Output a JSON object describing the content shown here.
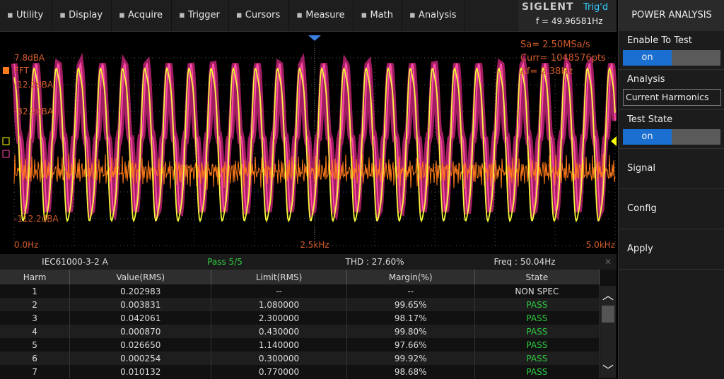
{
  "menu": {
    "items": [
      "Utility",
      "Display",
      "Acquire",
      "Trigger",
      "Cursors",
      "Measure",
      "Math",
      "Analysis"
    ]
  },
  "status": {
    "brand": "SIGLENT",
    "trigger": "Trig'd",
    "frequency": "f = 49.96581Hz"
  },
  "scope": {
    "y_labels": [
      "7.8dBA",
      "FFT",
      "-12.2dBA",
      "-32.2dBA",
      "-112.2dBA"
    ],
    "info": [
      "Sa=  2.50MSa/s",
      "Curr= 1048576pts",
      "Δf=  2.38Hz"
    ],
    "x_labels": [
      "0.0Hz",
      "2.5kHz",
      "5.0kHz"
    ]
  },
  "summary": {
    "standard": "IEC61000-3-2 A",
    "result": "Pass 5/5",
    "thd": "THD : 27.60%",
    "freq": "Freq : 50.04Hz"
  },
  "table": {
    "columns": [
      "Harm",
      "Value(RMS)",
      "Limit(RMS)",
      "Margin(%)",
      "State"
    ],
    "rows": [
      [
        "1",
        "0.202983",
        "--",
        "--",
        "NON SPEC"
      ],
      [
        "2",
        "0.003831",
        "1.080000",
        "99.65%",
        "PASS"
      ],
      [
        "3",
        "0.042061",
        "2.300000",
        "98.17%",
        "PASS"
      ],
      [
        "4",
        "0.000870",
        "0.430000",
        "99.80%",
        "PASS"
      ],
      [
        "5",
        "0.026650",
        "1.140000",
        "97.66%",
        "PASS"
      ],
      [
        "6",
        "0.000254",
        "0.300000",
        "99.92%",
        "PASS"
      ],
      [
        "7",
        "0.010132",
        "0.770000",
        "98.68%",
        "PASS"
      ]
    ]
  },
  "panel": {
    "title": "POWER ANALYSIS",
    "enable_label": "Enable To Test",
    "enable_value": "on",
    "analysis_label": "Analysis",
    "analysis_value": "Current Harmonics",
    "state_label": "Test State",
    "state_value": "on",
    "signal": "Signal",
    "config": "Config",
    "apply": "Apply"
  }
}
